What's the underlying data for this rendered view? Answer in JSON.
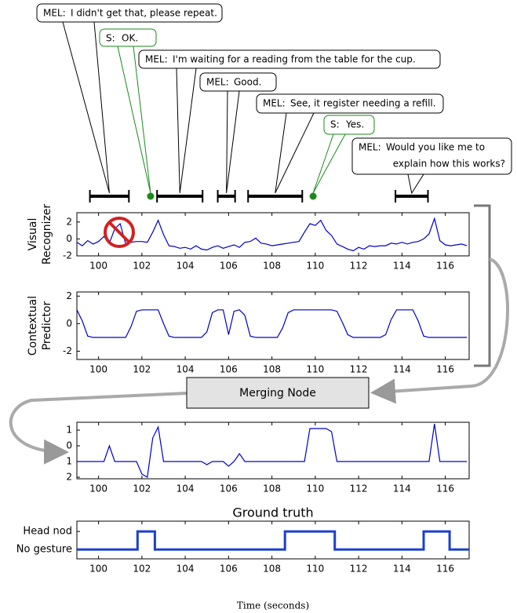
{
  "dialogue": [
    {
      "speaker": "MEL:",
      "lines": [
        "I didn't get that, please repeat."
      ],
      "start": 99.6,
      "end": 101.4,
      "color": "#000000"
    },
    {
      "speaker": "S:",
      "lines": [
        "OK."
      ],
      "at": 102.4,
      "color": "#1a8a1a"
    },
    {
      "speaker": "MEL:",
      "lines": [
        "I'm waiting for a reading from the table for the cup."
      ],
      "start": 102.7,
      "end": 104.8,
      "color": "#000000"
    },
    {
      "speaker": "MEL:",
      "lines": [
        "Good."
      ],
      "start": 105.5,
      "end": 106.3,
      "color": "#000000"
    },
    {
      "speaker": "MEL:",
      "lines": [
        "See, it register needing a refill."
      ],
      "start": 106.9,
      "end": 109.4,
      "color": "#000000"
    },
    {
      "speaker": "S:",
      "lines": [
        "Yes."
      ],
      "at": 109.9,
      "color": "#1a8a1a"
    },
    {
      "speaker": "MEL:",
      "lines": [
        "Would you like me to",
        "explain how this works?"
      ],
      "start": 113.7,
      "end": 115.2,
      "color": "#000000"
    }
  ],
  "merging_node": "Merging Node",
  "chart_data": [
    {
      "type": "line",
      "ylabel": [
        "Visual",
        "Recognizer"
      ],
      "color": "#0000cc",
      "xlim": [
        99,
        117.1
      ],
      "xticks": [
        100,
        102,
        104,
        106,
        108,
        110,
        112,
        114,
        116
      ],
      "ylim": [
        -2,
        3.1
      ],
      "yticks": [
        -2,
        0,
        2
      ],
      "x": [
        99,
        99.25,
        99.5,
        99.75,
        100,
        100.25,
        100.5,
        100.75,
        101,
        101.25,
        101.5,
        101.75,
        102,
        102.25,
        102.5,
        102.75,
        103,
        103.25,
        103.5,
        103.75,
        104,
        104.25,
        104.5,
        104.75,
        105,
        105.25,
        105.5,
        105.75,
        106,
        106.25,
        106.5,
        106.75,
        107,
        107.25,
        107.5,
        107.75,
        108,
        108.25,
        108.5,
        108.75,
        109,
        109.25,
        109.5,
        109.75,
        110,
        110.25,
        110.5,
        110.75,
        111,
        111.25,
        111.5,
        111.75,
        112,
        112.25,
        112.5,
        112.75,
        113,
        113.25,
        113.5,
        113.75,
        114,
        114.25,
        114.5,
        114.75,
        115,
        115.25,
        115.5,
        115.75,
        116,
        116.25,
        116.5,
        116.75,
        117
      ],
      "values": [
        -0.4,
        -0.8,
        -0.2,
        -0.6,
        -0.3,
        0.3,
        -0.5,
        1.2,
        1.8,
        -0.6,
        -0.4,
        -0.3,
        -0.3,
        -0.4,
        0.8,
        2.2,
        0.5,
        -0.8,
        -0.9,
        -1.1,
        -1.0,
        -1.2,
        -0.8,
        -1.2,
        -1.3,
        -1.0,
        -0.8,
        -1.1,
        -0.9,
        -0.7,
        -1.0,
        -0.4,
        -0.3,
        0.1,
        -0.5,
        -0.6,
        -0.8,
        -0.7,
        -0.6,
        -0.5,
        -0.4,
        -0.3,
        0.8,
        1.8,
        1.6,
        2.2,
        1.0,
        0.4,
        -0.6,
        -0.9,
        -1.2,
        -1.4,
        -1.0,
        -1.2,
        -0.8,
        -0.9,
        -0.8,
        -0.8,
        -0.5,
        -0.6,
        -0.4,
        -0.6,
        -0.4,
        -0.3,
        0.0,
        0.6,
        2.4,
        -0.2,
        -0.7,
        -0.8,
        -0.7,
        -0.6,
        -0.8
      ]
    },
    {
      "type": "line",
      "ylabel": [
        "Contextual",
        "Predictor"
      ],
      "color": "#0000cc",
      "xlim": [
        99,
        117.1
      ],
      "xticks": [
        100,
        102,
        104,
        106,
        108,
        110,
        112,
        114,
        116
      ],
      "ylim": [
        -2.6,
        2.3
      ],
      "yticks": [
        -2,
        0,
        2
      ],
      "x": [
        99,
        99.25,
        99.5,
        99.75,
        100,
        100.25,
        100.5,
        100.75,
        101,
        101.25,
        101.5,
        101.75,
        102,
        102.25,
        102.5,
        102.75,
        103,
        103.25,
        103.5,
        103.75,
        104,
        104.25,
        104.5,
        104.75,
        105,
        105.25,
        105.5,
        105.75,
        106,
        106.25,
        106.5,
        106.75,
        107,
        107.25,
        107.5,
        107.75,
        108,
        108.25,
        108.5,
        108.75,
        109,
        109.25,
        109.5,
        109.75,
        110,
        110.25,
        110.5,
        110.75,
        111,
        111.25,
        111.5,
        111.75,
        112,
        112.25,
        112.5,
        112.75,
        113,
        113.25,
        113.5,
        113.75,
        114,
        114.25,
        114.5,
        114.75,
        115,
        115.25,
        115.5,
        115.75,
        116,
        116.25,
        116.5,
        116.75,
        117
      ],
      "values": [
        1,
        0.2,
        -0.9,
        -1,
        -1,
        -1,
        -1,
        -1,
        -1,
        -1,
        -0.2,
        0.9,
        1,
        1,
        1,
        1,
        0,
        -0.9,
        -1,
        -1,
        -1,
        -1,
        -1,
        -1,
        -0.6,
        0.8,
        1,
        1,
        -0.8,
        0.9,
        1,
        0.6,
        -0.9,
        -1,
        -1,
        -1,
        -1,
        -1,
        -0.3,
        0.8,
        1,
        1,
        1,
        1,
        1,
        1,
        1,
        1,
        0.9,
        0.1,
        -0.8,
        -1,
        -1,
        -1,
        -1,
        -1,
        -1,
        -0.8,
        0.3,
        1,
        1,
        1,
        1,
        0.2,
        -0.9,
        -1,
        -1,
        -1,
        -1,
        -1,
        -1,
        -1,
        -1
      ]
    },
    {
      "type": "line",
      "color": "#0000cc",
      "xlim": [
        99,
        117.1
      ],
      "xticks": [
        100,
        102,
        104,
        106,
        108,
        110,
        112,
        114,
        116
      ],
      "ylim": [
        -2.1,
        1.5
      ],
      "yticks": [
        {
          "value": -2,
          "label": "2"
        },
        {
          "value": -1,
          "label": "1"
        },
        0,
        1
      ],
      "x": [
        99,
        99.25,
        99.5,
        99.75,
        100,
        100.25,
        100.5,
        100.75,
        101,
        101.25,
        101.5,
        101.75,
        102,
        102.25,
        102.5,
        102.75,
        103,
        103.25,
        103.5,
        103.75,
        104,
        104.25,
        104.5,
        104.75,
        105,
        105.25,
        105.5,
        105.75,
        106,
        106.25,
        106.5,
        106.75,
        107,
        107.25,
        107.5,
        107.75,
        108,
        108.25,
        108.5,
        108.75,
        109,
        109.25,
        109.5,
        109.75,
        110,
        110.25,
        110.5,
        110.75,
        111,
        111.25,
        111.5,
        111.75,
        112,
        112.25,
        112.5,
        112.75,
        113,
        113.25,
        113.5,
        113.75,
        114,
        114.25,
        114.5,
        114.75,
        115,
        115.25,
        115.5,
        115.75,
        116,
        116.25,
        116.5,
        116.75,
        117
      ],
      "values": [
        -1,
        -1,
        -1,
        -1,
        -1,
        -1,
        0,
        -1,
        -1,
        -1,
        -1,
        -1,
        -1.8,
        -2,
        0.5,
        1.2,
        -1,
        -1,
        -1,
        -1,
        -1,
        -1,
        -1,
        -1,
        -1.2,
        -1,
        -1,
        -1,
        -1.3,
        -1,
        -0.5,
        -1,
        -1,
        -1,
        -1,
        -1,
        -1,
        -1,
        -1,
        -1,
        -1,
        -1,
        -1,
        1.1,
        1.1,
        1.1,
        1.1,
        0.9,
        -1,
        -1,
        -1,
        -1,
        -1,
        -1,
        -1,
        -1,
        -1,
        -1,
        -1,
        -1,
        -1,
        -1,
        -1,
        -1,
        -1,
        -1,
        1.4,
        -1,
        -1,
        -1,
        -1,
        -1,
        -1
      ]
    },
    {
      "type": "line",
      "title": "Ground truth",
      "xlabel": "Time (seconds)",
      "color": "#1a3fd0",
      "xlim": [
        99,
        117.1
      ],
      "xticks": [
        100,
        102,
        104,
        106,
        108,
        110,
        112,
        114,
        116
      ],
      "ylim": [
        -0.52,
        1.57
      ],
      "yticks": [
        {
          "value": 0,
          "label": "No gesture"
        },
        {
          "value": 1,
          "label": "Head nod"
        }
      ],
      "x": [
        99,
        101.8,
        101.8,
        102.6,
        102.6,
        108.6,
        108.6,
        110.9,
        110.9,
        115,
        115,
        116.2,
        116.2,
        117.1
      ],
      "values": [
        0,
        0,
        1,
        1,
        0,
        0,
        1,
        1,
        0,
        0,
        1,
        1,
        0,
        0
      ]
    }
  ]
}
